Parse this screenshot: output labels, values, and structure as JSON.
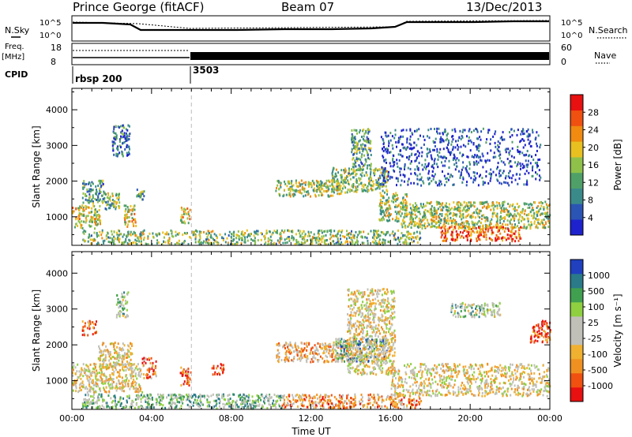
{
  "header": {
    "station": "Prince George (fitACF)",
    "beam": "Beam 07",
    "date": "13/Dec/2013"
  },
  "top_panels": {
    "nsky_label": "N.Sky",
    "nsearch_label": "N.Search",
    "nsky_ticks": [
      "10^5",
      "10^0"
    ],
    "nsearch_ticks": [
      "10^5",
      "10^0"
    ],
    "freq_label_1": "Freq.",
    "freq_label_2": "[MHz]",
    "freq_ticks": [
      "18",
      "8"
    ],
    "nave_label": "Nave",
    "nave_ticks": [
      "60",
      "0"
    ],
    "cpid_label": "CPID",
    "cpid_segments": [
      {
        "label": "rbsp 200",
        "start_hour": 0
      },
      {
        "label": "3503",
        "start_hour": 6
      }
    ]
  },
  "colors": {
    "power_scale": [
      "#1e22cc",
      "#2b55b5",
      "#3a8a8a",
      "#4fa068",
      "#8fc14a",
      "#e8c020",
      "#f08a10",
      "#f05010",
      "#e81010"
    ],
    "velocity_scale": [
      "#e81010",
      "#f05010",
      "#f09020",
      "#f0b030",
      "#c0c0b8",
      "#c0c0b8",
      "#8ed040",
      "#40a050",
      "#2a7a8a",
      "#2040c0"
    ]
  },
  "chart_data": [
    {
      "type": "heatmap",
      "name": "power",
      "xlabel": "",
      "ylabel": "Slant Range [km]",
      "colorbar_label": "Power [dB]",
      "colorbar_ticks": [
        "28",
        "24",
        "20",
        "16",
        "12",
        "8",
        "4"
      ],
      "xlim": [
        0,
        24
      ],
      "ylim": [
        200,
        4600
      ],
      "y_ticks": [
        "4000",
        "3000",
        "2000",
        "1000"
      ],
      "regions": [
        {
          "x": [
            0.0,
            1.4
          ],
          "y": [
            700,
            1350
          ],
          "level": 0.55
        },
        {
          "x": [
            0.5,
            1.6
          ],
          "y": [
            1400,
            2050
          ],
          "level": 0.35
        },
        {
          "x": [
            1.6,
            2.4
          ],
          "y": [
            1200,
            1700
          ],
          "level": 0.45
        },
        {
          "x": [
            2.6,
            3.2
          ],
          "y": [
            750,
            1350
          ],
          "level": 0.6
        },
        {
          "x": [
            3.2,
            3.6
          ],
          "y": [
            1500,
            1800
          ],
          "level": 0.35
        },
        {
          "x": [
            2.0,
            2.9
          ],
          "y": [
            2700,
            3600
          ],
          "level": 0.25
        },
        {
          "x": [
            5.4,
            5.9
          ],
          "y": [
            850,
            1300
          ],
          "level": 0.55
        },
        {
          "x": [
            0.5,
            17.5
          ],
          "y": [
            250,
            650
          ],
          "level": 0.45
        },
        {
          "x": [
            10.2,
            13.5
          ],
          "y": [
            1600,
            2050
          ],
          "level": 0.5
        },
        {
          "x": [
            13.0,
            15.8
          ],
          "y": [
            1700,
            2400
          ],
          "level": 0.45
        },
        {
          "x": [
            14.0,
            15.0
          ],
          "y": [
            2400,
            3500
          ],
          "level": 0.35
        },
        {
          "x": [
            15.4,
            16.8
          ],
          "y": [
            900,
            1700
          ],
          "level": 0.5
        },
        {
          "x": [
            16.5,
            24.0
          ],
          "y": [
            700,
            1450
          ],
          "level": 0.5
        },
        {
          "x": [
            18.5,
            22.5
          ],
          "y": [
            350,
            750
          ],
          "level": 0.8
        },
        {
          "x": [
            15.5,
            23.5
          ],
          "y": [
            1900,
            3500
          ],
          "level": 0.12
        }
      ]
    },
    {
      "type": "heatmap",
      "name": "velocity",
      "xlabel": "Time UT",
      "ylabel": "Slant Range [km]",
      "colorbar_label": "Velocity [m s⁻¹]",
      "colorbar_ticks": [
        "1000",
        "500",
        "100",
        "25",
        "-25",
        "-100",
        "-500",
        "-1000"
      ],
      "xlim": [
        0,
        24
      ],
      "ylim": [
        200,
        4600
      ],
      "y_ticks": [
        "4000",
        "3000",
        "2000",
        "1000"
      ],
      "x_ticks": [
        "00:00",
        "04:00",
        "08:00",
        "12:00",
        "16:00",
        "20:00",
        "00:00"
      ],
      "regions": [
        {
          "x": [
            0.0,
            3.5
          ],
          "y": [
            700,
            1500
          ],
          "level": 0.45
        },
        {
          "x": [
            1.3,
            3.0
          ],
          "y": [
            1400,
            2100
          ],
          "level": 0.45
        },
        {
          "x": [
            2.2,
            2.8
          ],
          "y": [
            2800,
            3500
          ],
          "level": 0.6
        },
        {
          "x": [
            0.5,
            1.2
          ],
          "y": [
            2300,
            2700
          ],
          "level": 0.2
        },
        {
          "x": [
            3.5,
            4.2
          ],
          "y": [
            1100,
            1700
          ],
          "level": 0.2
        },
        {
          "x": [
            5.4,
            6.0
          ],
          "y": [
            900,
            1400
          ],
          "level": 0.2
        },
        {
          "x": [
            7.0,
            7.6
          ],
          "y": [
            1200,
            1500
          ],
          "level": 0.05
        },
        {
          "x": [
            0.5,
            10.5
          ],
          "y": [
            250,
            650
          ],
          "level": 0.65
        },
        {
          "x": [
            10.5,
            17.5
          ],
          "y": [
            250,
            650
          ],
          "level": 0.3
        },
        {
          "x": [
            10.2,
            14.0
          ],
          "y": [
            1550,
            2100
          ],
          "level": 0.35
        },
        {
          "x": [
            13.2,
            15.8
          ],
          "y": [
            1550,
            2200
          ],
          "level": 0.7
        },
        {
          "x": [
            13.8,
            16.2
          ],
          "y": [
            1200,
            3600
          ],
          "level": 0.45
        },
        {
          "x": [
            16.0,
            24.0
          ],
          "y": [
            600,
            1500
          ],
          "level": 0.45
        },
        {
          "x": [
            23.0,
            24.0
          ],
          "y": [
            2100,
            2700
          ],
          "level": 0.1
        },
        {
          "x": [
            19.0,
            21.5
          ],
          "y": [
            2800,
            3200
          ],
          "level": 0.6
        }
      ]
    }
  ]
}
